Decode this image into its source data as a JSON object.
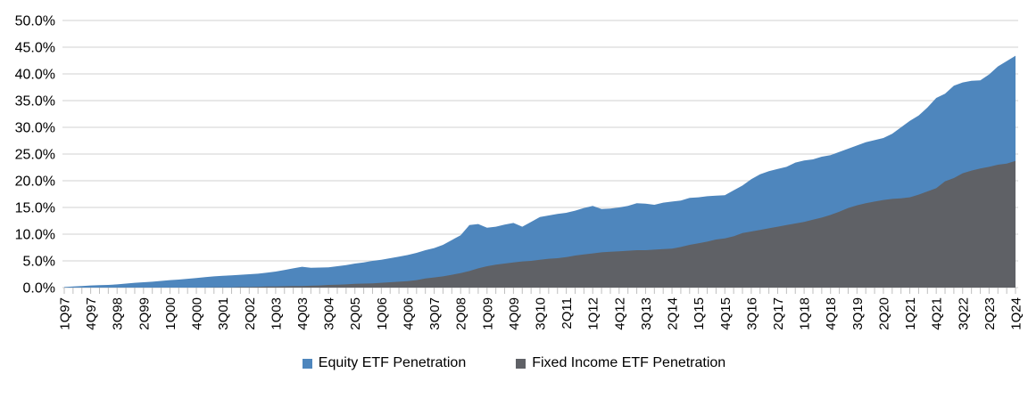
{
  "chart_data": {
    "type": "area",
    "mode": "overlapping",
    "title": "",
    "xlabel": "",
    "ylabel": "",
    "ylim": [
      0,
      50
    ],
    "y_tick_step": 5,
    "y_tick_labels": [
      "0.0%",
      "5.0%",
      "10.0%",
      "15.0%",
      "20.0%",
      "25.0%",
      "30.0%",
      "35.0%",
      "40.0%",
      "45.0%",
      "50.0%"
    ],
    "x_label_every": 3,
    "grid": true,
    "legend_position": "bottom",
    "categories": [
      "1Q97",
      "2Q97",
      "3Q97",
      "4Q97",
      "1Q98",
      "2Q98",
      "3Q98",
      "4Q98",
      "1Q99",
      "2Q99",
      "3Q99",
      "4Q99",
      "1Q00",
      "2Q00",
      "3Q00",
      "4Q00",
      "1Q01",
      "2Q01",
      "3Q01",
      "4Q01",
      "1Q02",
      "2Q02",
      "3Q02",
      "4Q02",
      "1Q03",
      "2Q03",
      "3Q03",
      "4Q03",
      "1Q04",
      "2Q04",
      "3Q04",
      "4Q04",
      "1Q05",
      "2Q05",
      "3Q05",
      "4Q05",
      "1Q06",
      "2Q06",
      "3Q06",
      "4Q06",
      "1Q07",
      "2Q07",
      "3Q07",
      "4Q07",
      "1Q08",
      "2Q08",
      "3Q08",
      "4Q08",
      "1Q09",
      "2Q09",
      "3Q09",
      "4Q09",
      "1Q10",
      "2Q10",
      "3Q10",
      "4Q10",
      "1Q11",
      "2Q11",
      "3Q11",
      "4Q11",
      "1Q12",
      "2Q12",
      "3Q12",
      "4Q12",
      "1Q13",
      "2Q13",
      "3Q13",
      "4Q13",
      "1Q14",
      "2Q14",
      "3Q14",
      "4Q14",
      "1Q15",
      "2Q15",
      "3Q15",
      "4Q15",
      "1Q16",
      "2Q16",
      "3Q16",
      "4Q16",
      "1Q17",
      "2Q17",
      "3Q17",
      "4Q17",
      "1Q18",
      "2Q18",
      "3Q18",
      "4Q18",
      "1Q19",
      "2Q19",
      "3Q19",
      "4Q19",
      "1Q20",
      "2Q20",
      "3Q20",
      "4Q20",
      "1Q21",
      "2Q21",
      "3Q21",
      "4Q21",
      "1Q22",
      "2Q22",
      "3Q22",
      "4Q22",
      "1Q23",
      "2Q23",
      "3Q23",
      "4Q23",
      "1Q24"
    ],
    "series": [
      {
        "name": "Equity ETF Penetration",
        "color": "#4E86BD",
        "values": [
          0.1,
          0.2,
          0.3,
          0.4,
          0.45,
          0.5,
          0.6,
          0.75,
          0.9,
          1.0,
          1.1,
          1.25,
          1.4,
          1.5,
          1.65,
          1.8,
          1.95,
          2.1,
          2.2,
          2.3,
          2.4,
          2.5,
          2.6,
          2.8,
          3.0,
          3.3,
          3.6,
          3.9,
          3.7,
          3.75,
          3.8,
          4.0,
          4.2,
          4.5,
          4.7,
          5.0,
          5.2,
          5.5,
          5.8,
          6.1,
          6.5,
          7.0,
          7.4,
          8.0,
          8.9,
          9.8,
          11.7,
          11.9,
          11.2,
          11.4,
          11.8,
          12.1,
          11.4,
          12.3,
          13.2,
          13.5,
          13.8,
          14.0,
          14.4,
          14.9,
          15.3,
          14.7,
          14.8,
          15.0,
          15.3,
          15.8,
          15.7,
          15.5,
          15.9,
          16.1,
          16.3,
          16.8,
          16.9,
          17.1,
          17.2,
          17.3,
          18.2,
          19.1,
          20.3,
          21.2,
          21.8,
          22.2,
          22.6,
          23.4,
          23.8,
          24.0,
          24.5,
          24.8,
          25.4,
          26.0,
          26.6,
          27.2,
          27.6,
          28.0,
          28.8,
          30.0,
          31.2,
          32.2,
          33.7,
          35.5,
          36.3,
          37.8,
          38.4,
          38.7,
          38.8,
          39.9,
          41.4,
          42.4,
          43.4
        ]
      },
      {
        "name": "Fixed Income ETF Penetration",
        "color": "#5F6166",
        "values": [
          0,
          0,
          0,
          0,
          0,
          0,
          0,
          0,
          0,
          0,
          0,
          0,
          0,
          0,
          0,
          0,
          0,
          0.05,
          0.05,
          0.05,
          0.1,
          0.1,
          0.15,
          0.2,
          0.2,
          0.25,
          0.3,
          0.3,
          0.35,
          0.4,
          0.5,
          0.55,
          0.6,
          0.7,
          0.75,
          0.8,
          0.9,
          1.0,
          1.1,
          1.2,
          1.4,
          1.7,
          1.9,
          2.1,
          2.4,
          2.7,
          3.1,
          3.6,
          4.0,
          4.3,
          4.5,
          4.7,
          4.9,
          5.0,
          5.2,
          5.4,
          5.5,
          5.7,
          6.0,
          6.2,
          6.4,
          6.6,
          6.7,
          6.8,
          6.9,
          7.0,
          7.0,
          7.1,
          7.2,
          7.3,
          7.6,
          8.0,
          8.3,
          8.6,
          9.0,
          9.2,
          9.6,
          10.2,
          10.5,
          10.8,
          11.1,
          11.4,
          11.7,
          12.0,
          12.3,
          12.7,
          13.1,
          13.6,
          14.2,
          14.9,
          15.4,
          15.8,
          16.1,
          16.4,
          16.6,
          16.7,
          16.9,
          17.4,
          18.0,
          18.6,
          19.9,
          20.5,
          21.4,
          21.9,
          22.3,
          22.6,
          23.0,
          23.2,
          23.7
        ]
      }
    ]
  },
  "legend": {
    "items": [
      {
        "label": "Equity ETF Penetration",
        "color": "#4E86BD"
      },
      {
        "label": "Fixed Income ETF Penetration",
        "color": "#5F6166"
      }
    ]
  },
  "style": {
    "gridline_color": "#D9D9D9",
    "tick_color": "#BFBFBF",
    "text_color": "#000000",
    "background": "#FFFFFF"
  }
}
